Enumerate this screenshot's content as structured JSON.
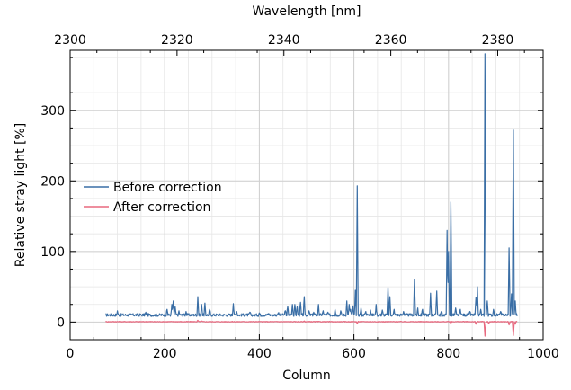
{
  "chart_data": {
    "type": "line",
    "xlabel": "Column",
    "ylabel": "Relative stray light [%]",
    "secondary_xlabel": "Wavelength [nm]",
    "xlim": [
      0,
      1000
    ],
    "ylim": [
      -25,
      385
    ],
    "secondary_xlim": [
      2300,
      2388.5
    ],
    "x_ticks": [
      0,
      200,
      400,
      600,
      800,
      1000
    ],
    "x_tick_labels": [
      "0",
      "200",
      "400",
      "600",
      "800",
      "1000"
    ],
    "y_ticks": [
      0,
      100,
      200,
      300
    ],
    "y_tick_labels": [
      "0",
      "100",
      "200",
      "300"
    ],
    "secondary_x_ticks": [
      2300,
      2320,
      2340,
      2360,
      2380
    ],
    "secondary_x_tick_labels": [
      "2300",
      "2320",
      "2340",
      "2360",
      "2380"
    ],
    "grid": true,
    "legend_position": "center-left",
    "series": [
      {
        "name": "Before correction",
        "color": "#3a6ea5",
        "baseline": 10,
        "x_range": [
          75,
          945
        ],
        "peaks": [
          [
            100,
            16
          ],
          [
            160,
            14
          ],
          [
            205,
            18
          ],
          [
            215,
            25
          ],
          [
            218,
            30
          ],
          [
            222,
            22
          ],
          [
            230,
            16
          ],
          [
            245,
            15
          ],
          [
            270,
            36
          ],
          [
            278,
            25
          ],
          [
            285,
            27
          ],
          [
            295,
            18
          ],
          [
            345,
            26
          ],
          [
            352,
            15
          ],
          [
            380,
            14
          ],
          [
            400,
            13
          ],
          [
            420,
            12
          ],
          [
            440,
            13
          ],
          [
            455,
            16
          ],
          [
            460,
            22
          ],
          [
            470,
            25
          ],
          [
            475,
            25
          ],
          [
            480,
            22
          ],
          [
            487,
            28
          ],
          [
            495,
            36
          ],
          [
            505,
            16
          ],
          [
            515,
            14
          ],
          [
            525,
            25
          ],
          [
            535,
            16
          ],
          [
            545,
            14
          ],
          [
            560,
            18
          ],
          [
            572,
            16
          ],
          [
            585,
            30
          ],
          [
            590,
            25
          ],
          [
            593,
            18
          ],
          [
            598,
            23
          ],
          [
            603,
            45
          ],
          [
            607,
            193
          ],
          [
            615,
            20
          ],
          [
            625,
            15
          ],
          [
            635,
            17
          ],
          [
            647,
            25
          ],
          [
            660,
            17
          ],
          [
            672,
            49
          ],
          [
            676,
            36
          ],
          [
            685,
            18
          ],
          [
            705,
            15
          ],
          [
            728,
            60
          ],
          [
            735,
            20
          ],
          [
            745,
            18
          ],
          [
            762,
            41
          ],
          [
            775,
            44
          ],
          [
            785,
            15
          ],
          [
            797,
            130
          ],
          [
            800,
            100
          ],
          [
            805,
            170
          ],
          [
            815,
            20
          ],
          [
            825,
            18
          ],
          [
            845,
            15
          ],
          [
            858,
            35
          ],
          [
            861,
            50
          ],
          [
            868,
            18
          ],
          [
            877,
            380
          ],
          [
            882,
            30
          ],
          [
            895,
            18
          ],
          [
            910,
            15
          ],
          [
            928,
            105
          ],
          [
            933,
            40
          ],
          [
            937,
            272
          ],
          [
            941,
            30
          ]
        ]
      },
      {
        "name": "After correction",
        "color": "#e8697f",
        "baseline": 0.5,
        "x_range": [
          75,
          945
        ],
        "peaks": [
          [
            270,
            2.5
          ],
          [
            278,
            1.5
          ],
          [
            495,
            1.5
          ],
          [
            607,
            -2
          ],
          [
            805,
            -1.5
          ],
          [
            858,
            -3
          ],
          [
            877,
            -20
          ],
          [
            885,
            -2
          ],
          [
            928,
            -4
          ],
          [
            937,
            -19
          ],
          [
            941,
            -3
          ]
        ]
      }
    ]
  }
}
